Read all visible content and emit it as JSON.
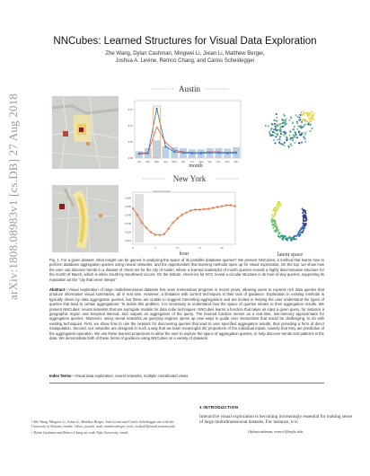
{
  "arxiv_stamp": "arXiv:1808.08983v1  [cs.DB]  27 Aug 2018",
  "title": "NNCubes: Learned Structures for Visual Data Exploration",
  "authors_line1": "Zhe Wang, Dylan Cashman, Mingwei Li, Jixian Li, Matthew Berger,",
  "authors_line2": "Joshua A. Levine, Remco Chang, and Carlos Scheidegger",
  "figure": {
    "panel_austin": "Austin",
    "panel_newyork": "New York",
    "austin_xlabel": "month",
    "newyork_xlabel": "hour",
    "latent_label": "latent space",
    "austin_ticks_x": [
      "Jan",
      "Feb",
      "Mar",
      "Apr",
      "May",
      "Jun",
      "Jul",
      "Aug",
      "Sep",
      "Oct",
      "Nov",
      "Dec"
    ],
    "austin_ticks_y": [
      "0.00",
      "0.05",
      "0.10",
      "0.15"
    ],
    "ny_ticks_x": [
      "0",
      "5",
      "10",
      "15",
      "20"
    ],
    "ny_ticks_y": [
      "0.010",
      "0.020",
      "0.030",
      "0.040",
      "0.050",
      "0.060"
    ],
    "colors": {
      "austin_line": "#3a78b8",
      "austin_bar": "#bcd1e6",
      "highlight_line": "#e0524b",
      "ny_line": "#d9662a",
      "map_land": "#cfd1cc",
      "map_hot": "#f1e27a",
      "map_dense": "#8b1d1d"
    }
  },
  "caption": {
    "label": "Fig. 1.",
    "text": "For a given dataset, what insight can be gained in analyzing the space of its possible database queries? We present NNCubes, a method that learns how to perform database aggregation queries using neural networks, and the opportunities that learning methods open up for visual exploration. On the top, we show how the user can discover trends in a dataset of check-ins for the city of Austin, where a learned scatterplot of month queries reveals a highly discriminative structure for the month of March, which is when South-by-Southwest occurs. On the bottom, check-ins for NYC reveal a circular structure in its hour-of-day queries, supporting its reputation as the “city that never sleeps”."
  },
  "abstract": {
    "label": "Abstract",
    "text": "—Visual exploration of large multidimensional datasets has seen tremendous progress in recent years, allowing users to express rich data queries that produce informative visual summaries, all in real time. However, a limitation with current techniques is their lack of guidance. Exploration in existing methods is typically driven by data aggregation queries, but these are unable to suggest interesting aggregations and are limited in helping the user understand the types of queries that lead to certain aggregations. To tackle this problem, it is necessary to understand how the space of queries relates to their aggregation results. We present NNCubes: neural networks that are surrogate models for data cube techniques. NNCubes learns a function that takes as input a given query, for instance a geographic region and temporal interval, and outputs an aggregation of the query. The learned function serves as a real-time, low-memory approximator for aggregation queries. Moreover, using neural networks as querying engines opens up new ways to guide user interactions that would be challenging, to do with existing techniques. First, we show how to use the network for discovering queries that lead to user specified aggregation results, thus providing a form of direct manipulation. Second, our networks are designed in such a way that we learn meaningful 2D projections of the individual inputs, namely that they are predictive of the aggregation operation. We use these learned projections to allow the user to explore the space of aggregation queries, to help discover trends and patterns in the data. We demonstrate both of these forms of guidance using NNCubes on a variety of datasets."
  },
  "index_terms": {
    "label": "Index Terms",
    "text": "—Visual data exploration, neural networks, multiple coordinated views"
  },
  "section1": "1   INTRODUCTION",
  "footnotes": [
    "• Zhe Wang, Mingwei Li, Jixian Li, Matthew Berger, Josh Levine and Carlos Scheidegger are with the University of Arizona, emails: {zhew, jixianli, mwli, matthewberger, josh, cscheid}@email.arizona.edu.",
    "• Dylan Cashman and Remco Chang are with Tufts University. email:"
  ],
  "intro_text": "Interactive visual exploration is becoming increasingly essential for making sense of large multidimensional datasets. For instance, it is",
  "intro_email": "{dylancashman, remco}@tufts.edu."
}
